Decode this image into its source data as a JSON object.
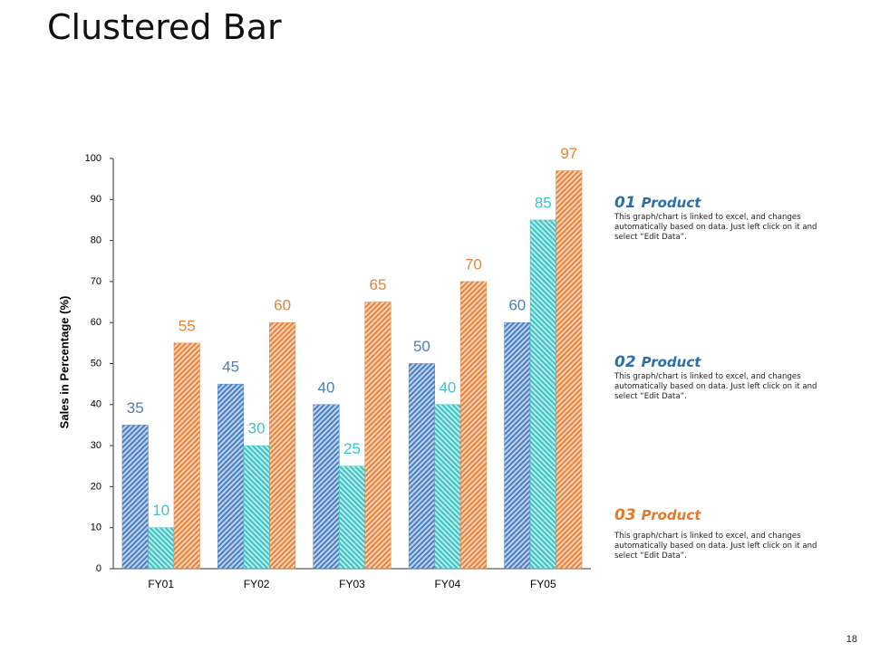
{
  "title": "Clustered Bar",
  "page_number": "18",
  "chart_data": {
    "type": "bar",
    "y_label": "Sales in Percentage (%)",
    "categories": [
      "FY01",
      "FY02",
      "FY03",
      "FY04",
      "FY05"
    ],
    "series": [
      {
        "color": "#4a7fc1",
        "values": [
          35,
          45,
          40,
          50,
          60
        ]
      },
      {
        "color": "#3cc3c3",
        "values": [
          10,
          30,
          25,
          40,
          85
        ]
      },
      {
        "color": "#e8823a",
        "values": [
          55,
          60,
          65,
          70,
          97
        ]
      }
    ],
    "ylim": [
      0,
      100
    ],
    "yticks": [
      0,
      10,
      20,
      30,
      40,
      50,
      60,
      70,
      80,
      90,
      100
    ],
    "grid": false
  },
  "notes": [
    {
      "number": "01",
      "title": "Product",
      "color": "#2f6fa8",
      "text": "This graph/chart is linked to excel, and changes automatically based on data. Just left click on it and select “Edit Data”."
    },
    {
      "number": "02",
      "title": "Product",
      "color": "#2f6fa8",
      "text": "This graph/chart is linked to excel, and changes automatically based on data. Just left click on it and select “Edit Data”."
    },
    {
      "number": "03",
      "title": "Product",
      "color": "#e07a2e",
      "text": "This graph/chart is linked to excel, and changes automatically based on data. Just left click on it and select “Edit Data”."
    }
  ]
}
